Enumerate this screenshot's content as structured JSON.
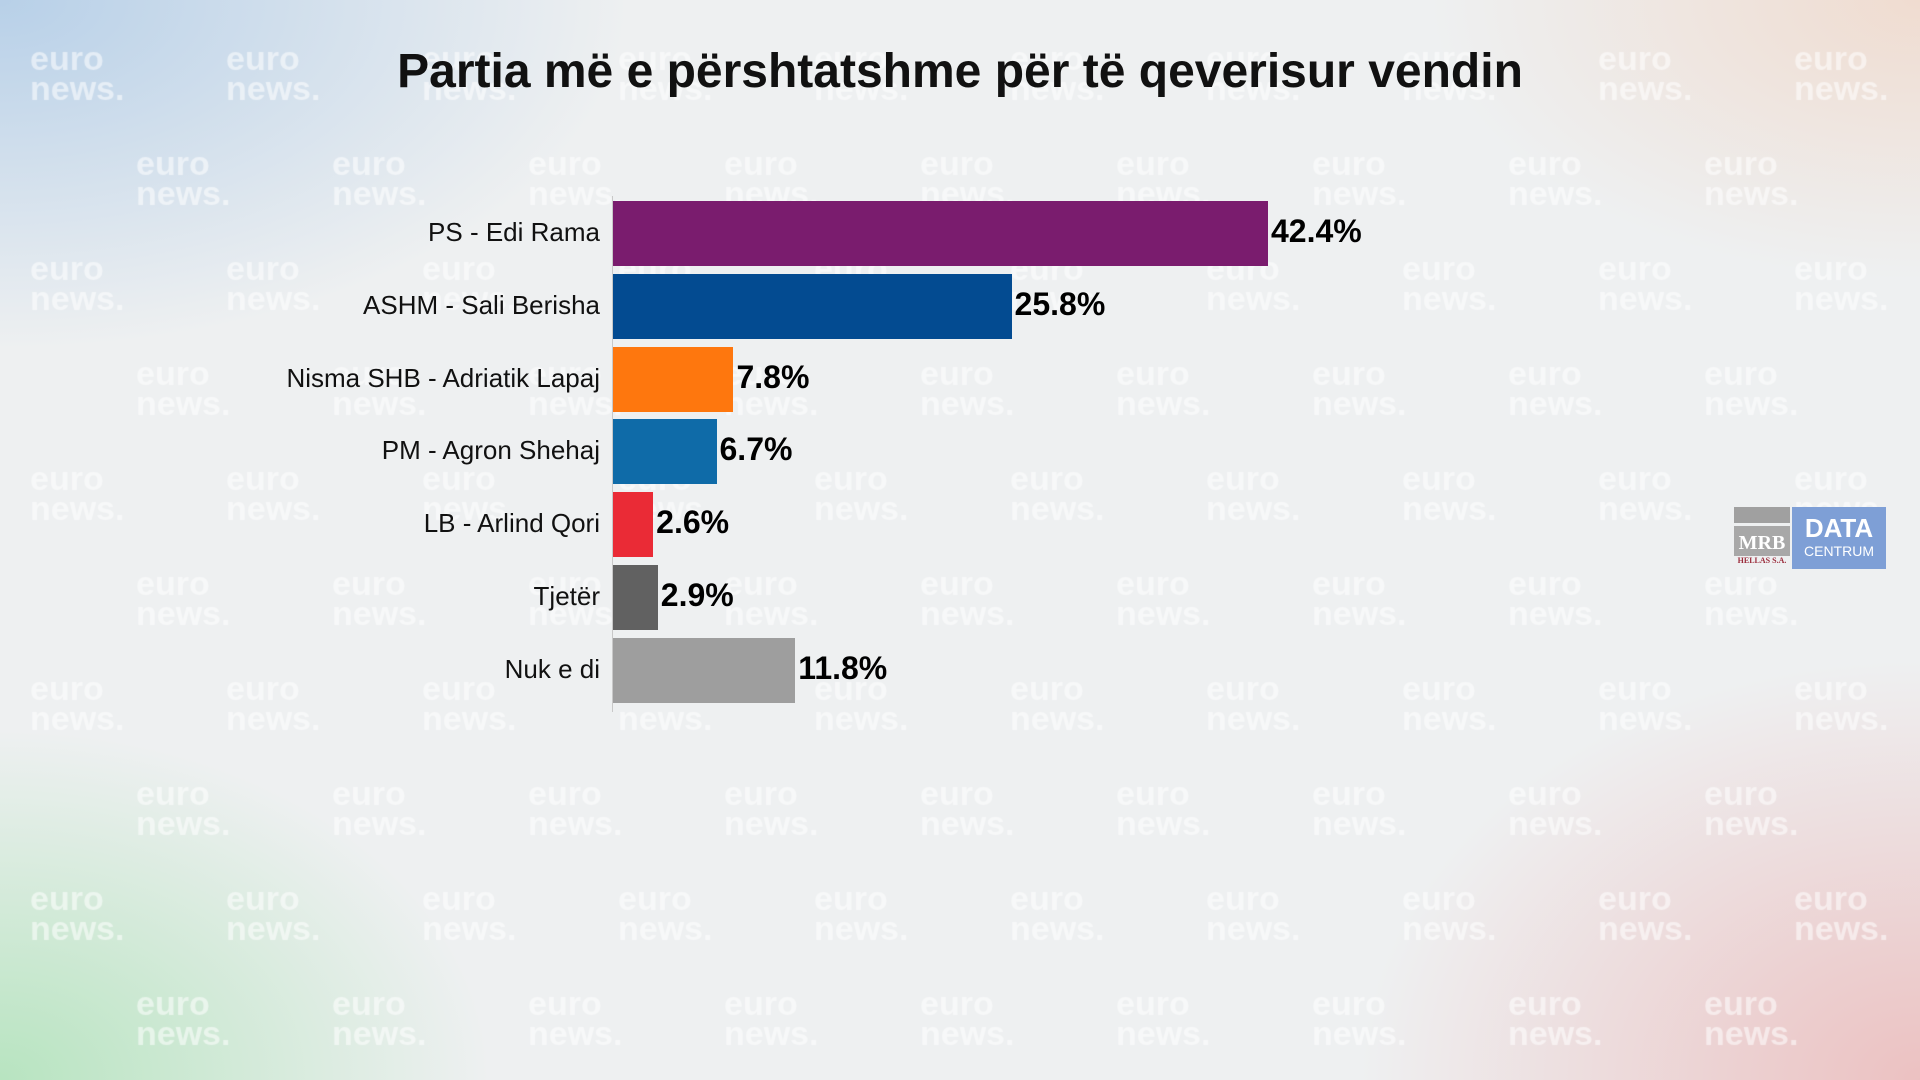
{
  "watermark": {
    "line1": "euro",
    "line2": "news."
  },
  "logo": {
    "mrb": "MRB",
    "mrb_sub": "HELLAS S.A.",
    "data": "DATA",
    "centrum": "CENTRUM"
  },
  "chart_data": {
    "type": "bar",
    "orientation": "horizontal",
    "title": "Partia më e përshtatshme për të qeverisur vendin",
    "categories": [
      "PS - Edi Rama",
      "ASHM - Sali Berisha",
      "Nisma SHB - Adriatik Lapaj",
      "PM - Agron Shehaj",
      "LB - Arlind Qori",
      "Tjetër",
      "Nuk e di"
    ],
    "values": [
      42.4,
      25.8,
      7.8,
      6.7,
      2.6,
      2.9,
      11.8
    ],
    "value_labels": [
      "42.4%",
      "25.8%",
      "7.8%",
      "6.7%",
      "2.6%",
      "2.9%",
      "11.8%"
    ],
    "colors": [
      "#7a1c6e",
      "#034b91",
      "#fe770e",
      "#0f6ba8",
      "#ea2b36",
      "#616161",
      "#9e9e9e"
    ],
    "unit": "%",
    "grid": false,
    "legend": "none"
  }
}
